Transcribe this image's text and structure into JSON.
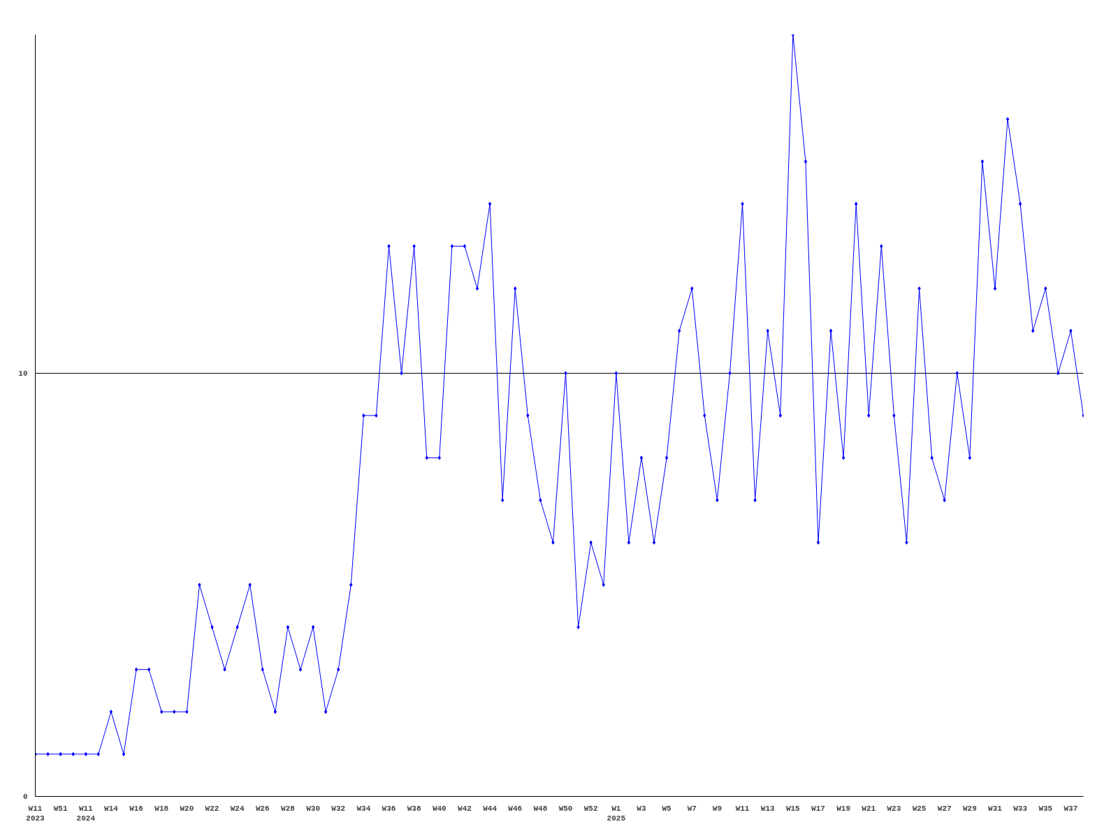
{
  "chart_data": {
    "type": "line",
    "categories": [
      "W11\n2023",
      null,
      "W51",
      null,
      "W11\n2024",
      null,
      "W14",
      null,
      "W16",
      null,
      "W18",
      null,
      "W20",
      null,
      "W22",
      null,
      "W24",
      null,
      "W26",
      null,
      "W28",
      null,
      "W30",
      null,
      "W32",
      null,
      "W34",
      null,
      "W36",
      null,
      "W38",
      null,
      "W40",
      null,
      "W42",
      null,
      "W44",
      null,
      "W46",
      null,
      "W48",
      null,
      "W50",
      null,
      "W52",
      null,
      "W1\n2025",
      null,
      "W3",
      null,
      "W5",
      null,
      "W7",
      null,
      "W9",
      null,
      "W11",
      null,
      "W13",
      null,
      "W15",
      null,
      "W17",
      null,
      "W19",
      null,
      "W21",
      null,
      "W23",
      null,
      "W25",
      null,
      "W27",
      null,
      "W29",
      null,
      "W31",
      null,
      "W33",
      null,
      "W35",
      null,
      "W37",
      null
    ],
    "series": [
      {
        "color": "#0000ff",
        "values": [
          1,
          1,
          1,
          1,
          1,
          1,
          2,
          1,
          3,
          3,
          2,
          2,
          2,
          5,
          4,
          3,
          4,
          5,
          3,
          2,
          4,
          3,
          4,
          2,
          3,
          5,
          9,
          9,
          13,
          10,
          13,
          8,
          8,
          13,
          13,
          12,
          14,
          7,
          12,
          9,
          7,
          6,
          10,
          4,
          6,
          5,
          10,
          6,
          8,
          6,
          8,
          11,
          12,
          9,
          7,
          10,
          14,
          7,
          11,
          9,
          18,
          15,
          6,
          11,
          8,
          14,
          9,
          13,
          9,
          6,
          12,
          8,
          7,
          10,
          8,
          15,
          12,
          16,
          14,
          11,
          12,
          10,
          11,
          9
        ]
      }
    ],
    "ylim": [
      0,
      18
    ],
    "yticks": [
      0,
      10
    ],
    "grid": "y",
    "marker": "diamond",
    "line_style": "solid"
  }
}
